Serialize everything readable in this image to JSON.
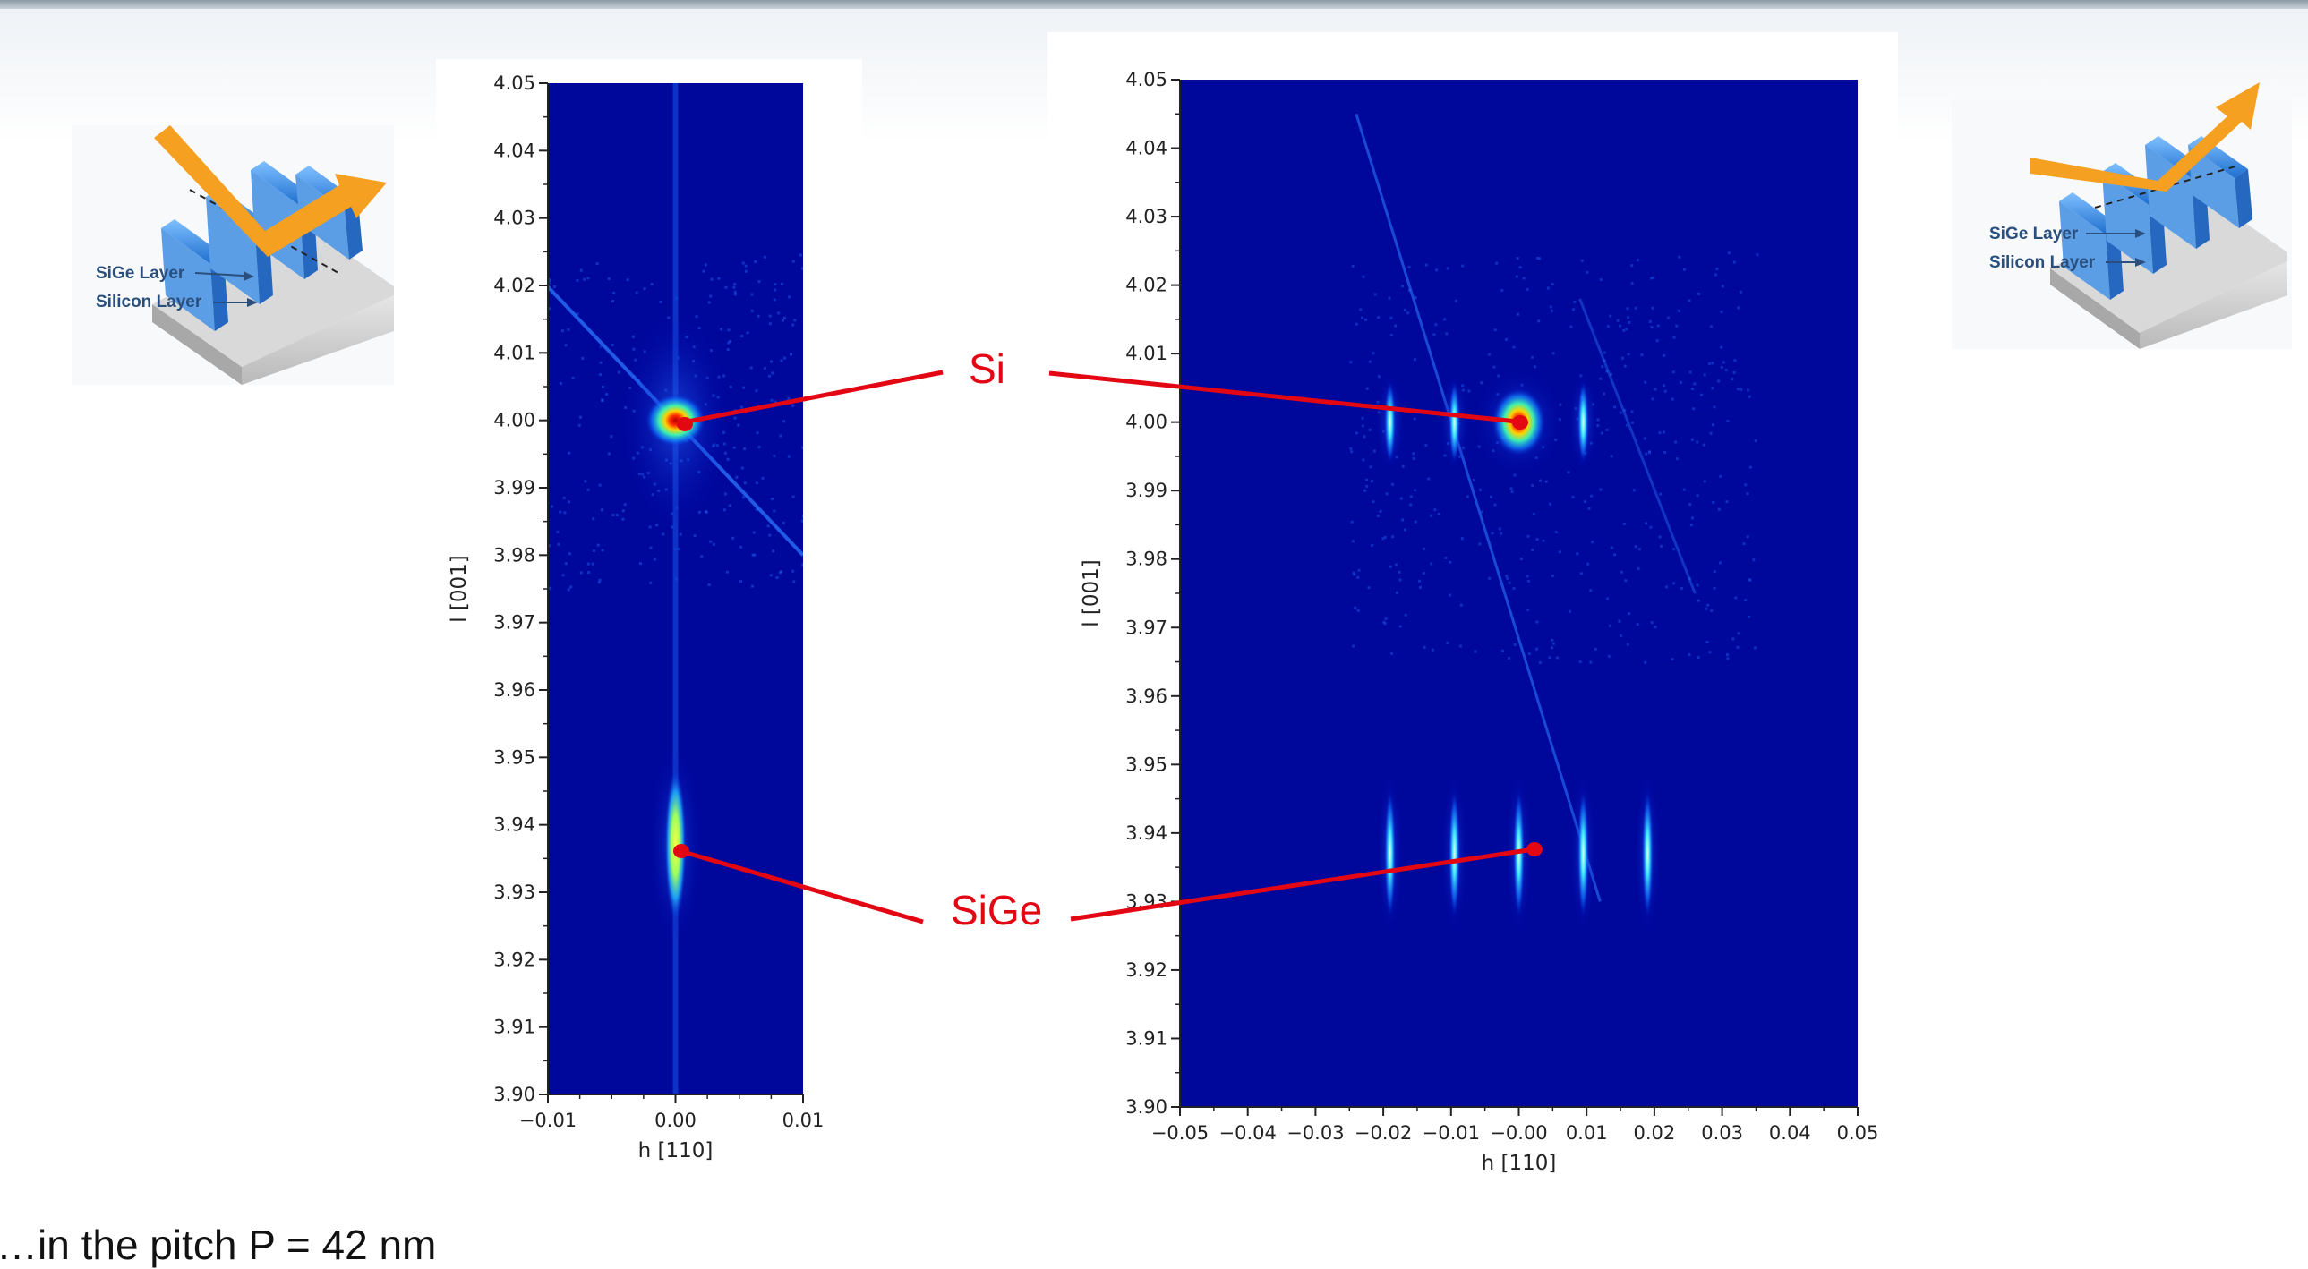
{
  "schematics": {
    "left": {
      "sige_label": "SiGe Layer",
      "si_label": "Silicon Layer"
    },
    "right": {
      "sige_label": "SiGe Layer",
      "si_label": "Silicon Layer"
    }
  },
  "callouts": {
    "si": "Si",
    "sige": "SiGe"
  },
  "caption": "…in   the  pitch   P = 42 nm",
  "colors": {
    "background_map": "#00079b",
    "callout": "#e30613",
    "arrow": "#f5a020",
    "fin_blue": "#3d8fe0"
  },
  "chart_data": [
    {
      "type": "heatmap",
      "xlabel": "h [110]",
      "ylabel": "l [001]",
      "xlim": [
        -0.01,
        0.01
      ],
      "ylim": [
        3.9,
        4.05
      ],
      "x_ticks": [
        "−0.01",
        "0.00",
        "0.01"
      ],
      "y_ticks": [
        "3.90",
        "3.91",
        "3.92",
        "3.93",
        "3.94",
        "3.95",
        "3.96",
        "3.97",
        "3.98",
        "3.99",
        "4.00",
        "4.01",
        "4.02",
        "4.03",
        "4.04",
        "4.05"
      ],
      "peaks": [
        {
          "label": "Si",
          "h": 0.0,
          "l": 4.0
        },
        {
          "label": "SiGe",
          "h": 0.0,
          "l": 3.937
        }
      ]
    },
    {
      "type": "heatmap",
      "xlabel": "h [110]",
      "ylabel": "l [001]",
      "xlim": [
        -0.05,
        0.05
      ],
      "ylim": [
        3.9,
        4.05
      ],
      "x_ticks": [
        "−0.05",
        "−0.04",
        "−0.03",
        "−0.02",
        "−0.01",
        "−0.00",
        "0.01",
        "0.02",
        "0.03",
        "0.04",
        "0.05"
      ],
      "y_ticks": [
        "3.90",
        "3.91",
        "3.92",
        "3.93",
        "3.94",
        "3.95",
        "3.96",
        "3.97",
        "3.98",
        "3.99",
        "4.00",
        "4.01",
        "4.02",
        "4.03",
        "4.04",
        "4.05"
      ],
      "si_satellites_h": [
        -0.019,
        -0.0095,
        0.0,
        0.0095
      ],
      "sige_satellites_h": [
        -0.019,
        -0.0095,
        0.0,
        0.0095,
        0.019
      ],
      "peaks": [
        {
          "label": "Si",
          "h": 0.0,
          "l": 4.0
        },
        {
          "label": "SiGe",
          "h": 0.002,
          "l": 3.938
        }
      ]
    }
  ]
}
